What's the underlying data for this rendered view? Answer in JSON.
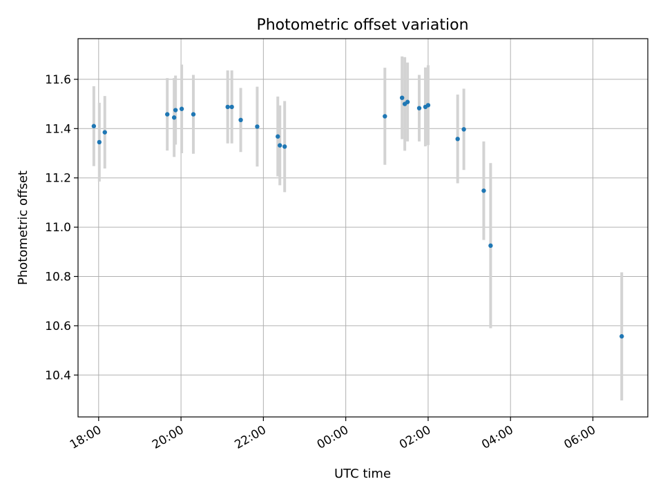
{
  "chart_data": {
    "type": "scatter",
    "title": "Photometric offset variation",
    "xlabel": "UTC time",
    "ylabel": "Photometric offset",
    "xlim": [
      "17:30",
      "07:20"
    ],
    "ylim": [
      10.23,
      11.765
    ],
    "x_ticks": [
      "18:00",
      "20:00",
      "22:00",
      "00:00",
      "02:00",
      "04:00",
      "06:00"
    ],
    "y_ticks": [
      "10.4",
      "10.6",
      "10.8",
      "11.0",
      "11.2",
      "11.4",
      "11.6"
    ],
    "grid": true,
    "point_color": "#1f77b4",
    "errorbar_color": "#d3d3d3",
    "series": [
      {
        "points": [
          {
            "time": "17:53",
            "y": 11.41,
            "err": 0.162
          },
          {
            "time": "18:01",
            "y": 11.345,
            "err": 0.16
          },
          {
            "time": "18:09",
            "y": 11.385,
            "err": 0.147
          },
          {
            "time": "19:40",
            "y": 11.458,
            "err": 0.147
          },
          {
            "time": "19:50",
            "y": 11.445,
            "err": 0.16
          },
          {
            "time": "19:52",
            "y": 11.475,
            "err": 0.14
          },
          {
            "time": "20:01",
            "y": 11.48,
            "err": 0.18
          },
          {
            "time": "20:18",
            "y": 11.458,
            "err": 0.16
          },
          {
            "time": "21:08",
            "y": 11.488,
            "err": 0.148
          },
          {
            "time": "21:14",
            "y": 11.488,
            "err": 0.148
          },
          {
            "time": "21:27",
            "y": 11.435,
            "err": 0.13
          },
          {
            "time": "21:51",
            "y": 11.408,
            "err": 0.162
          },
          {
            "time": "22:21",
            "y": 11.368,
            "err": 0.162
          },
          {
            "time": "22:24",
            "y": 11.332,
            "err": 0.162
          },
          {
            "time": "22:31",
            "y": 11.327,
            "err": 0.185
          },
          {
            "time": "00:57",
            "y": 11.45,
            "err": 0.197
          },
          {
            "time": "01:22",
            "y": 11.525,
            "err": 0.168
          },
          {
            "time": "01:26",
            "y": 11.5,
            "err": 0.19
          },
          {
            "time": "01:30",
            "y": 11.508,
            "err": 0.16
          },
          {
            "time": "01:47",
            "y": 11.483,
            "err": 0.135
          },
          {
            "time": "01:56",
            "y": 11.488,
            "err": 0.16
          },
          {
            "time": "02:00",
            "y": 11.495,
            "err": 0.162
          },
          {
            "time": "02:43",
            "y": 11.358,
            "err": 0.18
          },
          {
            "time": "02:52",
            "y": 11.397,
            "err": 0.165
          },
          {
            "time": "03:21",
            "y": 11.148,
            "err": 0.2
          },
          {
            "time": "03:31",
            "y": 10.925,
            "err": 0.335
          },
          {
            "time": "06:42",
            "y": 10.557,
            "err": 0.26
          }
        ]
      }
    ]
  }
}
